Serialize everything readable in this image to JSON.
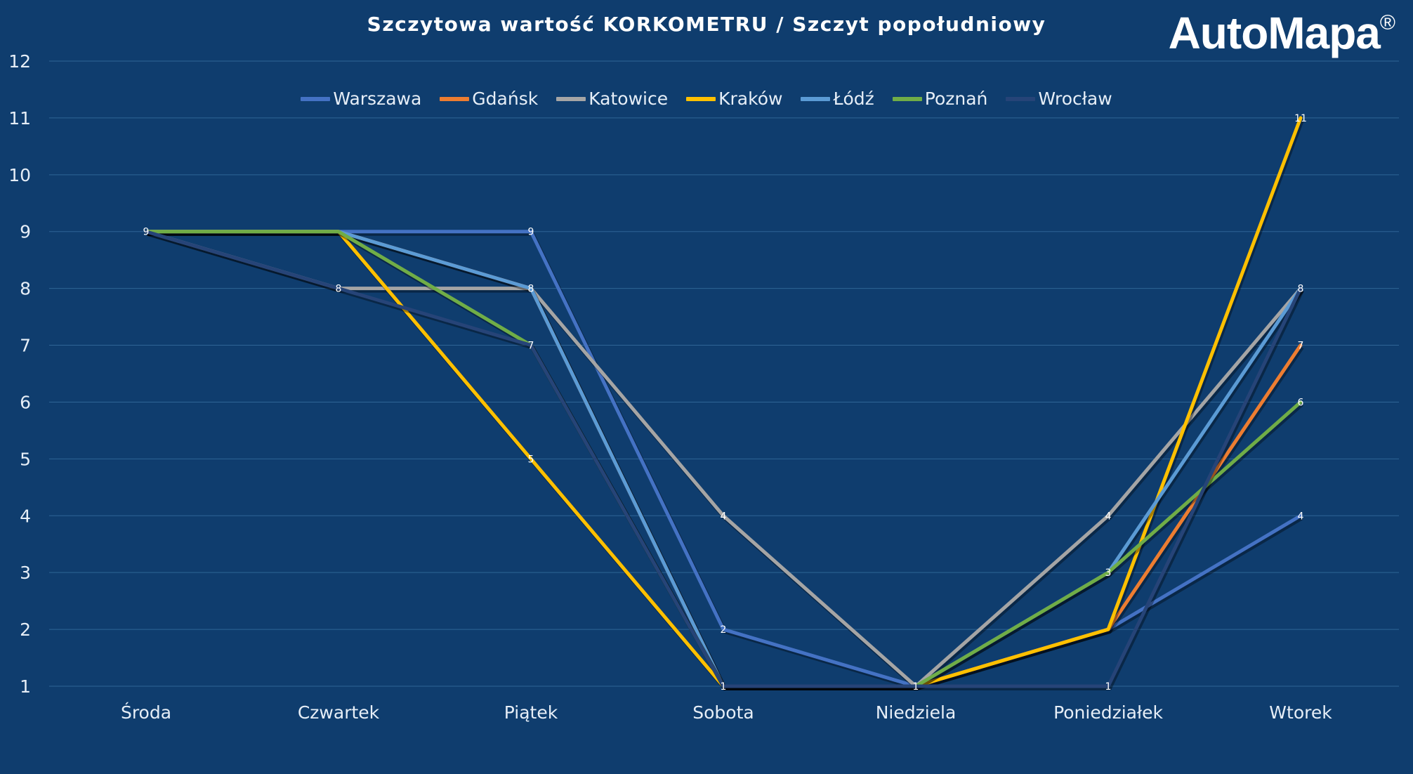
{
  "brand": {
    "name": "AutoMapa",
    "mark": "®"
  },
  "colors": {
    "background": "#0f3d6e",
    "grid": "#2f6596",
    "text": "#e6eef7"
  },
  "chart_data": {
    "type": "line",
    "title": "Szczytowa wartość KORKOMETRU / Szczyt popołudniowy",
    "categories": [
      "Środa",
      "Czwartek",
      "Piątek",
      "Sobota",
      "Niedziela",
      "Poniedziałek",
      "Wtorek"
    ],
    "ylim": [
      1,
      12
    ],
    "yticks": [
      1,
      2,
      3,
      4,
      5,
      6,
      7,
      8,
      9,
      10,
      11,
      12
    ],
    "grid": true,
    "legend_position": "top",
    "series": [
      {
        "name": "Warszawa",
        "color": "#4472c4",
        "values": [
          9,
          9,
          9,
          2,
          1,
          2,
          4
        ],
        "labels": [
          false,
          false,
          true,
          true,
          false,
          false,
          true
        ]
      },
      {
        "name": "Gdańsk",
        "color": "#ed7d31",
        "values": [
          9,
          9,
          8,
          1,
          1,
          2,
          7
        ],
        "labels": [
          false,
          false,
          false,
          false,
          false,
          false,
          true
        ]
      },
      {
        "name": "Katowice",
        "color": "#a5a5a5",
        "values": [
          9,
          8,
          8,
          4,
          1,
          4,
          8
        ],
        "labels": [
          false,
          true,
          false,
          true,
          false,
          true,
          false
        ]
      },
      {
        "name": "Kraków",
        "color": "#ffc000",
        "values": [
          9,
          9,
          5,
          1,
          1,
          2,
          11
        ],
        "labels": [
          false,
          false,
          true,
          false,
          false,
          false,
          true
        ]
      },
      {
        "name": "Łódź",
        "color": "#5b9bd5",
        "values": [
          9,
          9,
          8,
          1,
          1,
          3,
          8
        ],
        "labels": [
          false,
          false,
          true,
          false,
          false,
          false,
          false
        ]
      },
      {
        "name": "Poznań",
        "color": "#70ad47",
        "values": [
          9,
          9,
          7,
          1,
          1,
          3,
          6
        ],
        "labels": [
          false,
          false,
          false,
          false,
          false,
          true,
          true
        ]
      },
      {
        "name": "Wrocław",
        "color": "#264478",
        "values": [
          9,
          8,
          7,
          1,
          1,
          1,
          8
        ],
        "labels": [
          true,
          false,
          true,
          true,
          true,
          true,
          true
        ]
      }
    ]
  }
}
